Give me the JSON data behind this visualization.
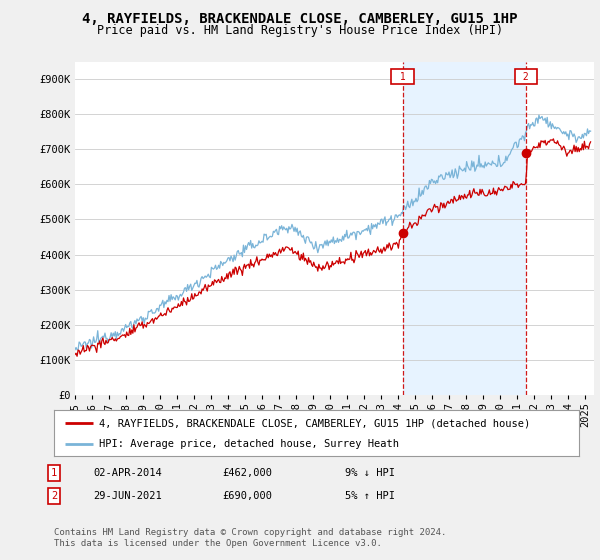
{
  "title": "4, RAYFIELDS, BRACKENDALE CLOSE, CAMBERLEY, GU15 1HP",
  "subtitle": "Price paid vs. HM Land Registry's House Price Index (HPI)",
  "ylabel_ticks": [
    "£0",
    "£100K",
    "£200K",
    "£300K",
    "£400K",
    "£500K",
    "£600K",
    "£700K",
    "£800K",
    "£900K"
  ],
  "ytick_values": [
    0,
    100000,
    200000,
    300000,
    400000,
    500000,
    600000,
    700000,
    800000,
    900000
  ],
  "ylim": [
    0,
    950000
  ],
  "xlim_start": 1995.0,
  "xlim_end": 2025.5,
  "xtick_years": [
    1995,
    1996,
    1997,
    1998,
    1999,
    2000,
    2001,
    2002,
    2003,
    2004,
    2005,
    2006,
    2007,
    2008,
    2009,
    2010,
    2011,
    2012,
    2013,
    2014,
    2015,
    2016,
    2017,
    2018,
    2019,
    2020,
    2021,
    2022,
    2023,
    2024,
    2025
  ],
  "hpi_color": "#7ab4d8",
  "price_color": "#cc0000",
  "shade_color": "#ddeeff",
  "background_color": "#f0f0f0",
  "plot_bg_color": "#ffffff",
  "legend_label_red": "4, RAYFIELDS, BRACKENDALE CLOSE, CAMBERLEY, GU15 1HP (detached house)",
  "legend_label_blue": "HPI: Average price, detached house, Surrey Heath",
  "marker1_year": 2014.25,
  "marker1_price": 462000,
  "marker2_year": 2021.5,
  "marker2_price": 690000,
  "table_rows": [
    [
      "1",
      "02-APR-2014",
      "£462,000",
      "9% ↓ HPI"
    ],
    [
      "2",
      "29-JUN-2021",
      "£690,000",
      "5% ↑ HPI"
    ]
  ],
  "footnote": "Contains HM Land Registry data © Crown copyright and database right 2024.\nThis data is licensed under the Open Government Licence v3.0.",
  "title_fontsize": 10,
  "subtitle_fontsize": 8.5,
  "tick_fontsize": 7.5,
  "legend_fontsize": 7.5,
  "table_fontsize": 7.5,
  "footnote_fontsize": 6.5
}
